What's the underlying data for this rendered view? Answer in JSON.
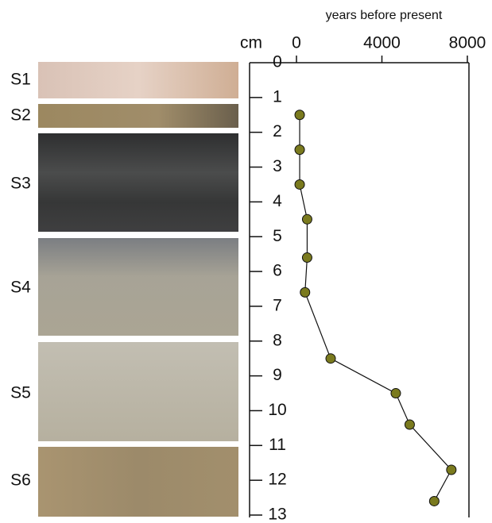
{
  "core_sections": [
    "S1",
    "S2",
    "S3",
    "S4",
    "S5",
    "S6"
  ],
  "chart_data": {
    "type": "line",
    "x_label": "years before present",
    "y_label": "cm",
    "x": [
      150,
      150,
      150,
      500,
      500,
      400,
      1600,
      4650,
      5300,
      7250,
      6450
    ],
    "values": [
      1.5,
      2.5,
      3.5,
      4.5,
      5.6,
      6.6,
      8.5,
      9.5,
      10.4,
      11.7,
      12.6
    ],
    "color": "#7a7a1e",
    "xlim": [
      0,
      8000
    ],
    "xticks": [
      0,
      4000,
      8000
    ],
    "ylim": [
      0,
      13
    ],
    "yticks": [
      0,
      1,
      2,
      3,
      4,
      5,
      6,
      7,
      8,
      9,
      10,
      11,
      12,
      13
    ],
    "y_inverted": true
  }
}
